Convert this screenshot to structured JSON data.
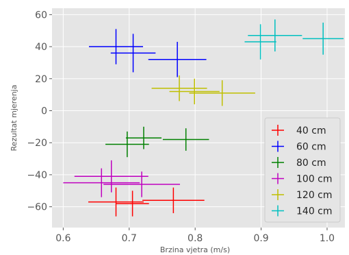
{
  "chart_data": {
    "type": "scatter",
    "title": "",
    "xlabel": "Brzina vjetra (m/s)",
    "ylabel": "Rezultat mjerenja",
    "xlim": [
      0.583,
      1.027
    ],
    "ylim": [
      -73,
      64
    ],
    "xticks": [
      0.6,
      0.7,
      0.8,
      0.9,
      1.0
    ],
    "xtick_labels": [
      "0.6",
      "0.7",
      "0.8",
      "0.9",
      "1.0"
    ],
    "yticks": [
      -60,
      -40,
      -20,
      0,
      20,
      40,
      60
    ],
    "ytick_labels": [
      "−60",
      "−40",
      "−20",
      "0",
      "20",
      "40",
      "60"
    ],
    "grid": true,
    "legend_position": "lower-right",
    "background_color": "#e5e5e5",
    "series": [
      {
        "name": "40 cm",
        "color": "#ff0000",
        "points": [
          {
            "x": 0.68,
            "y": -57,
            "xerr": 0.042,
            "yerr": 9
          },
          {
            "x": 0.705,
            "y": -58,
            "xerr": 0.025,
            "yerr": 8
          },
          {
            "x": 0.767,
            "y": -56,
            "xerr": 0.047,
            "yerr": 8
          }
        ]
      },
      {
        "name": "60 cm",
        "color": "#0000ff",
        "points": [
          {
            "x": 0.68,
            "y": 40,
            "xerr": 0.041,
            "yerr": 11
          },
          {
            "x": 0.706,
            "y": 36,
            "xerr": 0.034,
            "yerr": 12
          },
          {
            "x": 0.773,
            "y": 32,
            "xerr": 0.044,
            "yerr": 11
          }
        ]
      },
      {
        "name": "80 cm",
        "color": "#008000",
        "points": [
          {
            "x": 0.697,
            "y": -21,
            "xerr": 0.033,
            "yerr": 8
          },
          {
            "x": 0.722,
            "y": -17,
            "xerr": 0.027,
            "yerr": 7
          },
          {
            "x": 0.786,
            "y": -18,
            "xerr": 0.035,
            "yerr": 7
          }
        ]
      },
      {
        "name": "100 cm",
        "color": "#bf00bf",
        "points": [
          {
            "x": 0.658,
            "y": -45,
            "xerr": 0.058,
            "yerr": 9
          },
          {
            "x": 0.673,
            "y": -41,
            "xerr": 0.056,
            "yerr": 10
          },
          {
            "x": 0.719,
            "y": -46,
            "xerr": 0.058,
            "yerr": 8
          }
        ]
      },
      {
        "name": "120 cm",
        "color": "#bfbf00",
        "points": [
          {
            "x": 0.776,
            "y": 14,
            "xerr": 0.042,
            "yerr": 8
          },
          {
            "x": 0.799,
            "y": 12,
            "xerr": 0.038,
            "yerr": 8
          },
          {
            "x": 0.841,
            "y": 11,
            "xerr": 0.05,
            "yerr": 8
          }
        ]
      },
      {
        "name": "140 cm",
        "color": "#00bfbf",
        "points": [
          {
            "x": 0.899,
            "y": 43,
            "xerr": 0.024,
            "yerr": 11
          },
          {
            "x": 0.921,
            "y": 47,
            "xerr": 0.041,
            "yerr": 10
          },
          {
            "x": 0.994,
            "y": 45,
            "xerr": 0.031,
            "yerr": 10
          }
        ]
      }
    ]
  }
}
